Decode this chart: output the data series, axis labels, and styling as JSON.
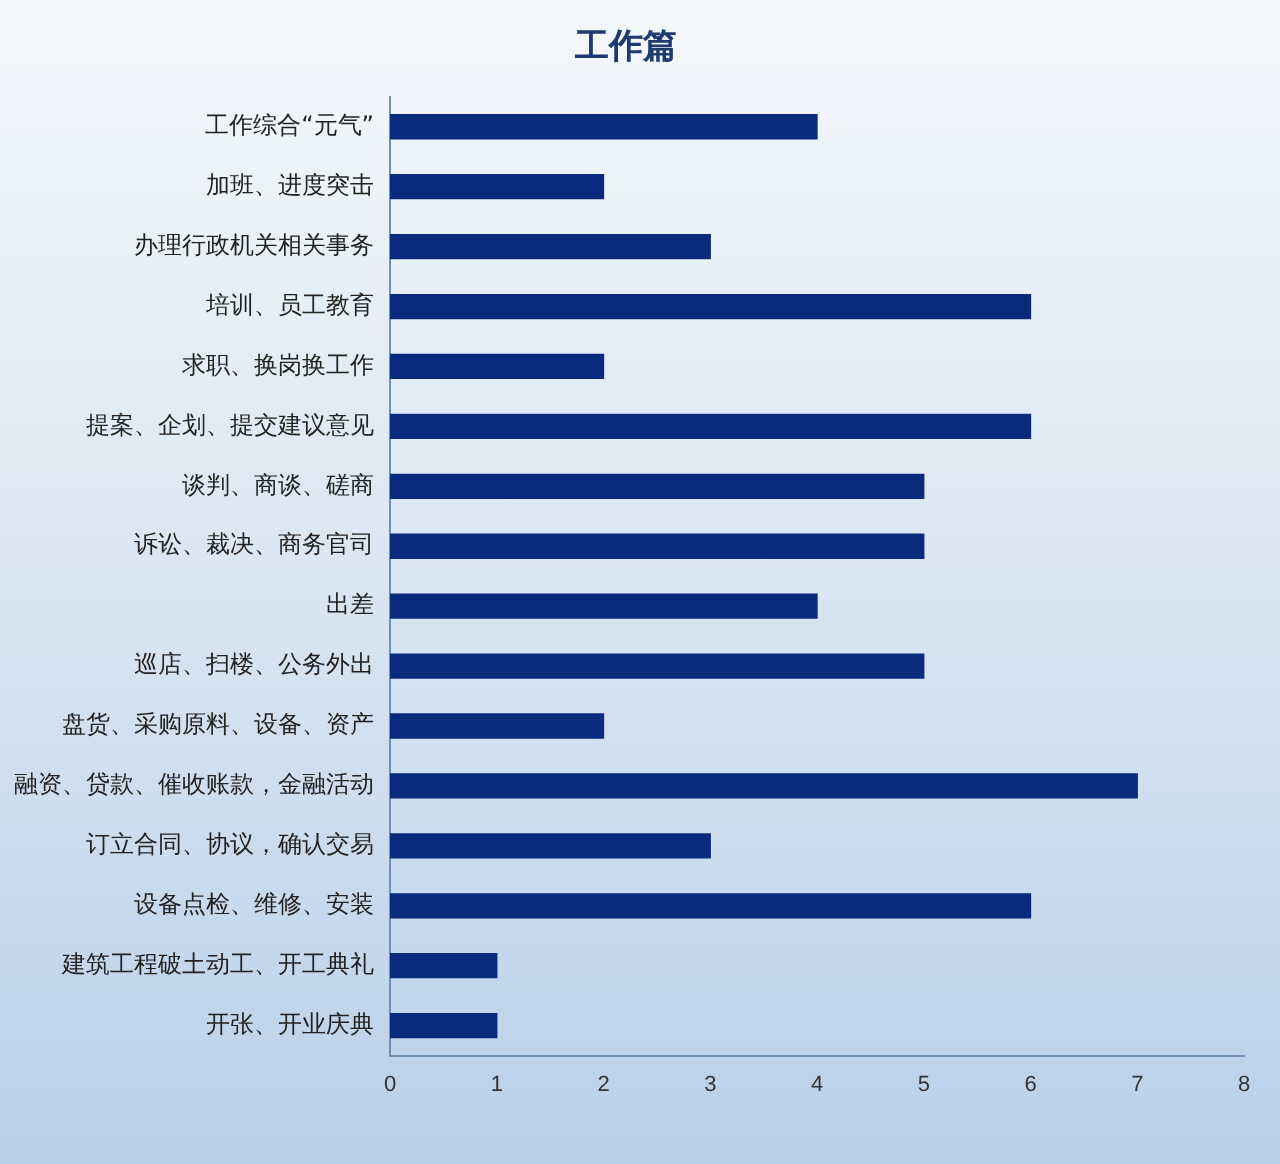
{
  "chart_data": {
    "type": "bar",
    "orientation": "horizontal",
    "title": "工作篇",
    "categories": [
      "工作综合“元气”",
      "加班、进度突击",
      "办理行政机关相关事务",
      "培训、员工教育",
      "求职、换岗换工作",
      "提案、企划、提交建议意见",
      "谈判、商谈、磋商",
      "诉讼、裁决、商务官司",
      "出差",
      "巡店、扫楼、公务外出",
      "盘货、采购原料、设备、资产",
      "融资、贷款、催收账款，金融活动",
      "订立合同、协议，确认交易",
      "设备点检、维修、安装",
      "建筑工程破土动工、开工典礼",
      "开张、开业庆典"
    ],
    "values": [
      4,
      2,
      3,
      6,
      2,
      6,
      5,
      5,
      4,
      5,
      2,
      7,
      3,
      6,
      1,
      1
    ],
    "color": "#0a2a7e",
    "xlim": [
      0,
      8
    ],
    "xticks": [
      0,
      1,
      2,
      3,
      4,
      5,
      6,
      7,
      8
    ],
    "grid": false,
    "legend": false
  }
}
